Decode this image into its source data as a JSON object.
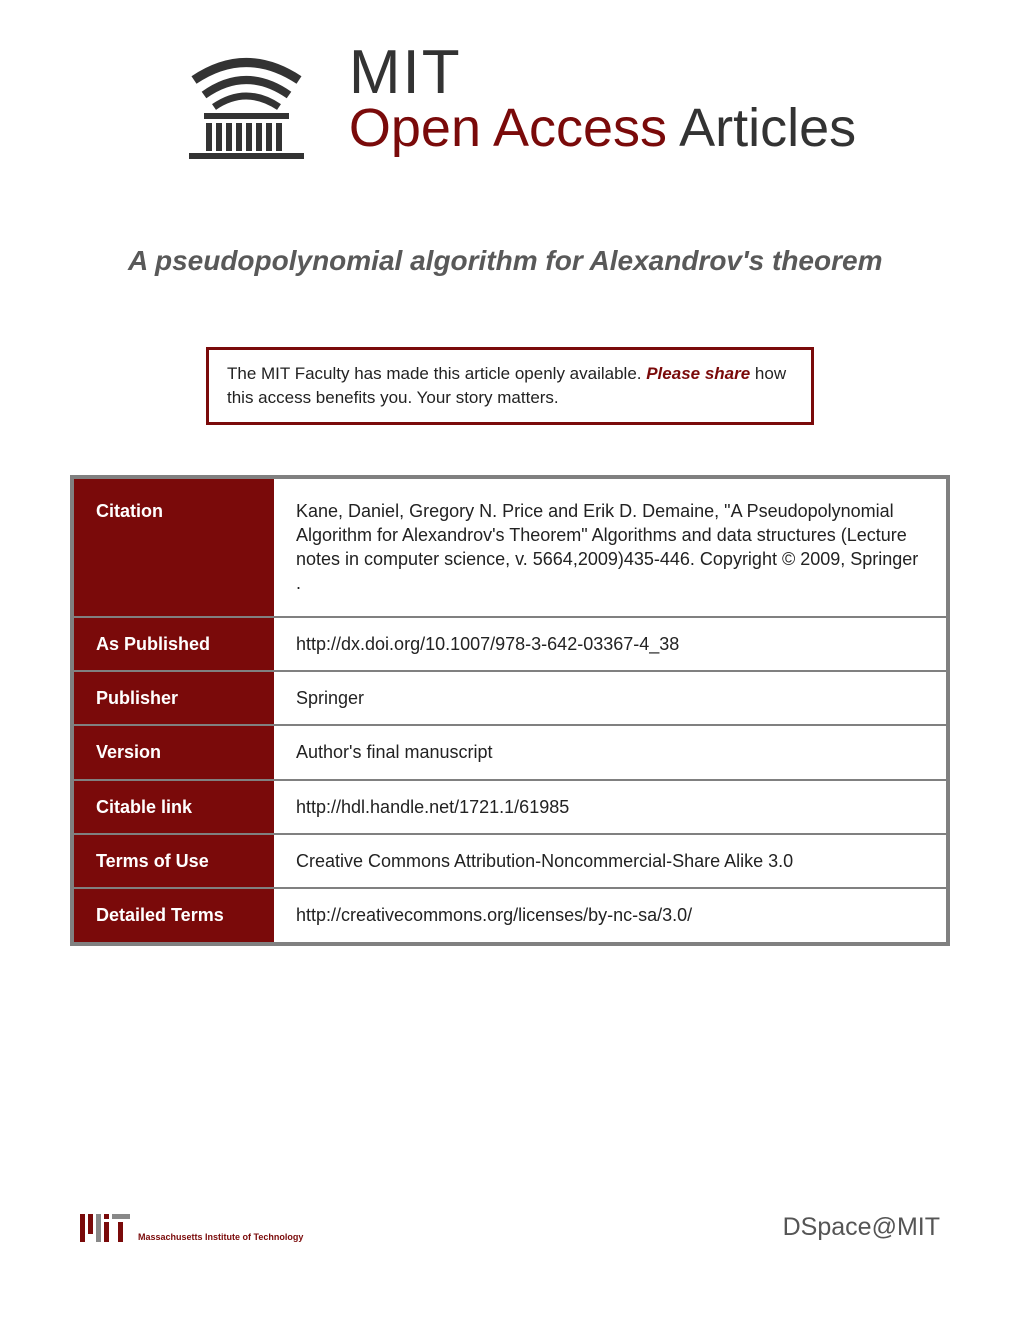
{
  "header": {
    "mit": "MIT",
    "open_access": "Open Access",
    "articles": " Articles"
  },
  "title": "A pseudopolynomial algorithm for Alexandrov's theorem",
  "notice": {
    "text_before": "The MIT Faculty has made this article openly available. ",
    "please_share": "Please share",
    "text_after": " how this access benefits you. Your story matters."
  },
  "metadata": {
    "rows": [
      {
        "label": "Citation",
        "value": "Kane, Daniel, Gregory N. Price and Erik D. Demaine, \"A Pseudopolynomial Algorithm for Alexandrov's Theorem\" Algorithms and data structures (Lecture notes in computer science, v. 5664,2009)435-446. Copyright © 2009, Springer ."
      },
      {
        "label": "As Published",
        "value": "http://dx.doi.org/10.1007/978-3-642-03367-4_38"
      },
      {
        "label": "Publisher",
        "value": "Springer"
      },
      {
        "label": "Version",
        "value": "Author's final manuscript"
      },
      {
        "label": "Citable link",
        "value": "http://hdl.handle.net/1721.1/61985"
      },
      {
        "label": "Terms of Use",
        "value": "Creative Commons Attribution-Noncommercial-Share Alike 3.0"
      },
      {
        "label": "Detailed Terms",
        "value": "http://creativecommons.org/licenses/by-nc-sa/3.0/"
      }
    ]
  },
  "footer": {
    "institution": "Massachusetts Institute of Technology",
    "dspace": "DSpace@MIT"
  },
  "colors": {
    "maroon": "#7a0a0a",
    "gray_border": "#808080",
    "title_gray": "#595959",
    "text": "#222222",
    "background": "#ffffff"
  }
}
